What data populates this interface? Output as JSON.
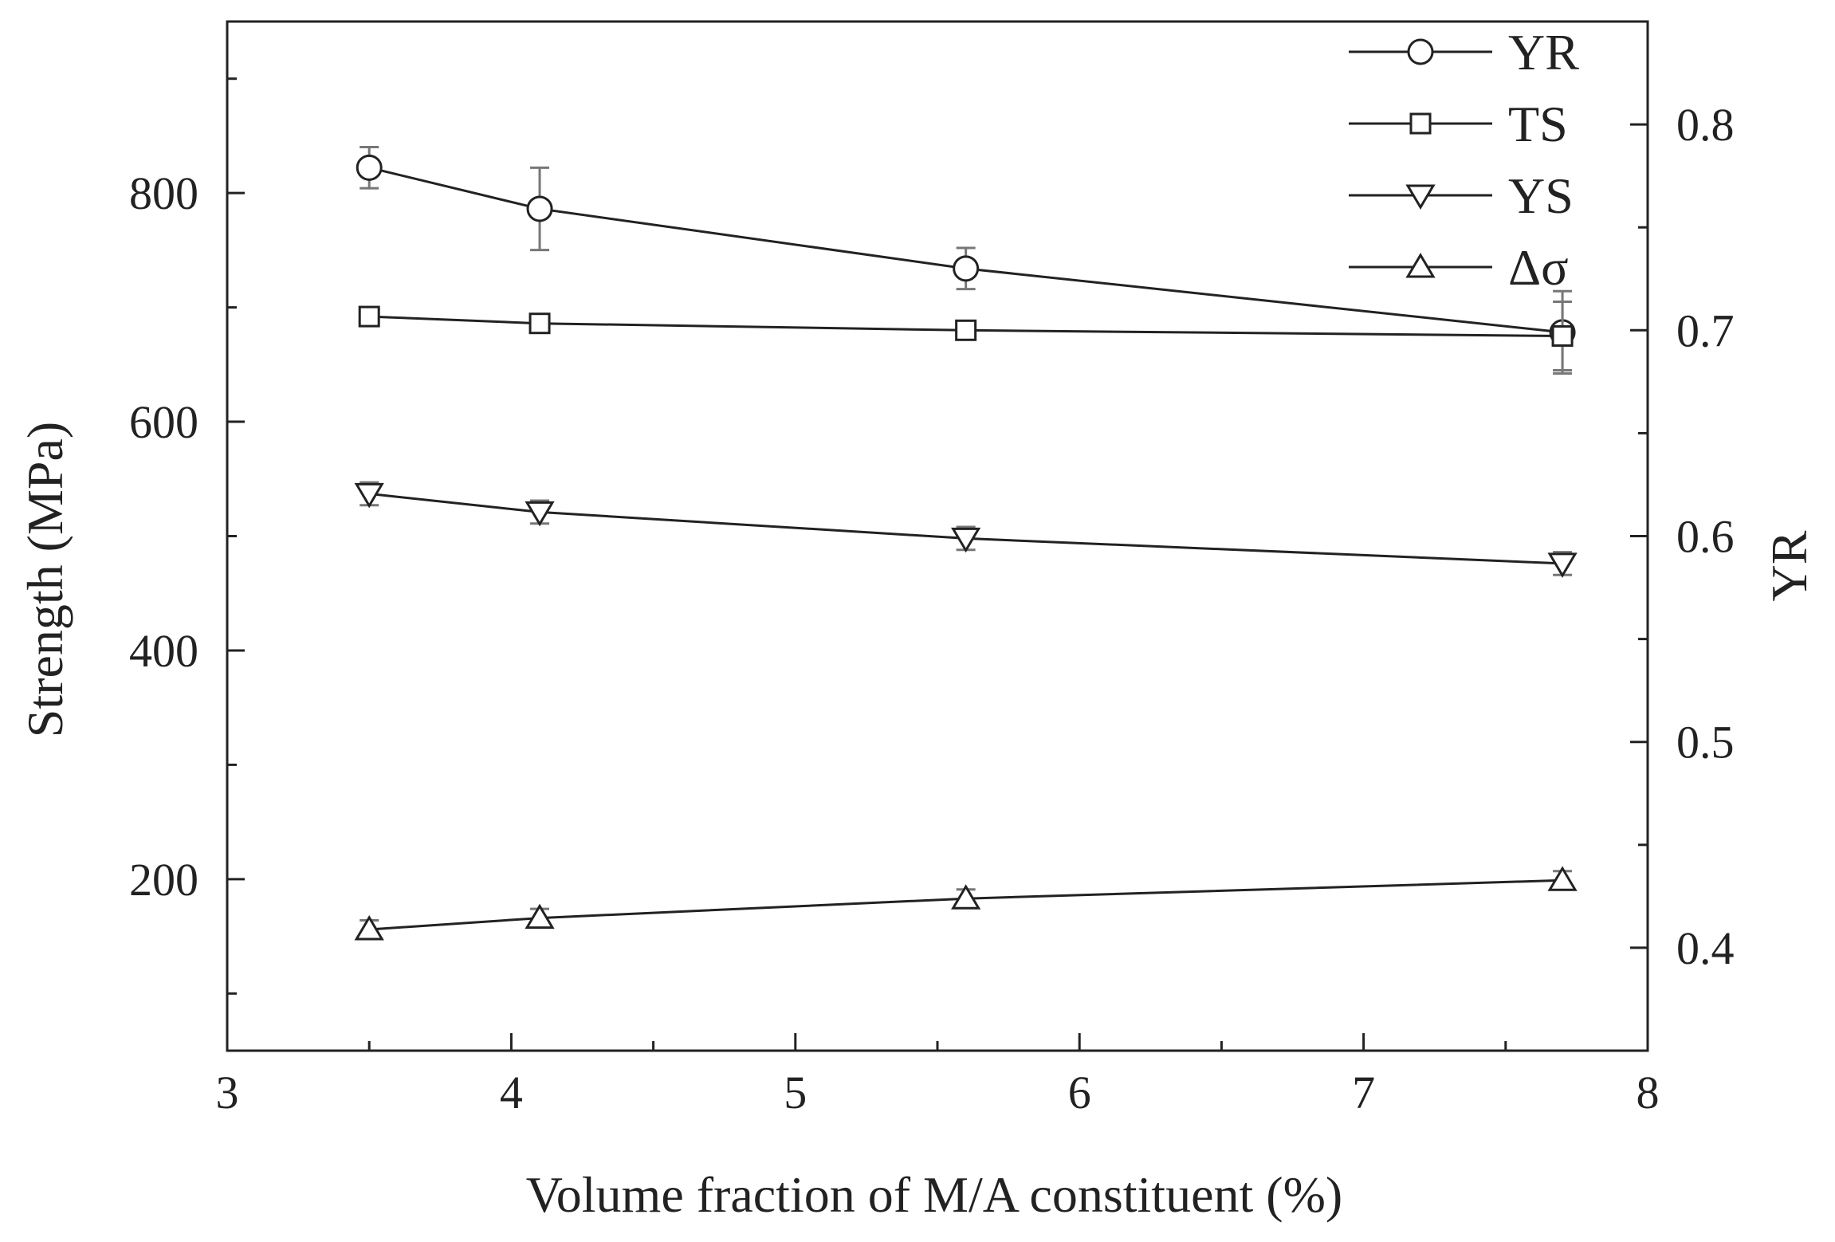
{
  "chart_data": {
    "type": "line",
    "xlabel": "Volume fraction of M/A constituent (%)",
    "ylabel_left": "Strength (MPa)",
    "ylabel_right": "YR",
    "xlim": [
      3,
      8
    ],
    "ylim_left": [
      50,
      950
    ],
    "ylim_right": [
      0.35,
      0.85
    ],
    "x_ticks": [
      "3",
      "4",
      "5",
      "6",
      "7",
      "8"
    ],
    "y_ticks_left": [
      "200",
      "400",
      "600",
      "800"
    ],
    "y_ticks_right": [
      "0.4",
      "0.5",
      "0.6",
      "0.7",
      "0.8"
    ],
    "x": [
      3.5,
      4.1,
      5.6,
      7.7
    ],
    "series": [
      {
        "name": "YR",
        "axis": "right",
        "marker": "circle",
        "values": [
          0.779,
          0.759,
          0.73,
          0.699
        ],
        "error": [
          0.01,
          0.02,
          0.01,
          0.02
        ]
      },
      {
        "name": "TS",
        "axis": "left",
        "marker": "square",
        "values": [
          692,
          686,
          680,
          675
        ],
        "error": [
          8,
          6,
          6,
          30
        ]
      },
      {
        "name": "YS",
        "axis": "left",
        "marker": "triangle-down",
        "values": [
          537,
          521,
          498,
          476
        ],
        "error": [
          10,
          10,
          10,
          10
        ]
      },
      {
        "name": "Δσ",
        "axis": "left",
        "marker": "triangle-up",
        "values": [
          156,
          166,
          183,
          199
        ],
        "error": [
          8,
          8,
          8,
          8
        ]
      }
    ],
    "legend_position": "top-right",
    "grid": false,
    "colors": {
      "line": "#222222",
      "marker_fill": "#ffffff",
      "error_bar": "#777777"
    }
  }
}
